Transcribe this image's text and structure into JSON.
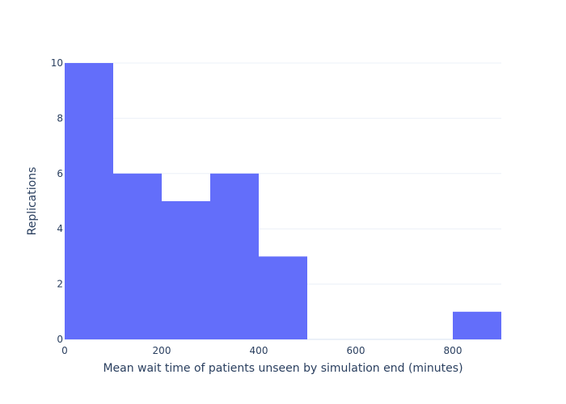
{
  "chart_data": {
    "type": "bar",
    "subtype": "histogram",
    "bins": [
      {
        "x0": 0,
        "x1": 100,
        "count": 10
      },
      {
        "x0": 100,
        "x1": 200,
        "count": 6
      },
      {
        "x0": 200,
        "x1": 300,
        "count": 5
      },
      {
        "x0": 300,
        "x1": 400,
        "count": 6
      },
      {
        "x0": 400,
        "x1": 500,
        "count": 3
      },
      {
        "x0": 500,
        "x1": 600,
        "count": 0
      },
      {
        "x0": 600,
        "x1": 700,
        "count": 0
      },
      {
        "x0": 700,
        "x1": 800,
        "count": 0
      },
      {
        "x0": 800,
        "x1": 900,
        "count": 1
      }
    ],
    "xlabel": "Mean wait time of patients unseen by simulation end (minutes)",
    "ylabel": "Replications",
    "xlim": [
      0,
      900
    ],
    "ylim": [
      0,
      10
    ],
    "xticks": [
      0,
      200,
      400,
      600,
      800
    ],
    "yticks": [
      0,
      2,
      4,
      6,
      8,
      10
    ],
    "grid": true,
    "bar_color": "#636efa"
  }
}
